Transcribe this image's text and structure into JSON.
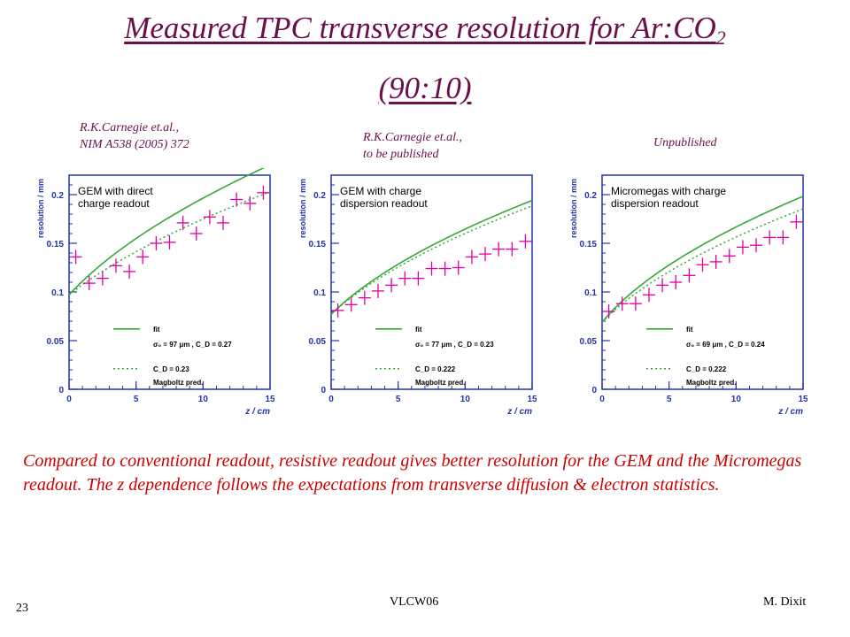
{
  "slide": {
    "title_main": "Measured TPC transverse resolution for Ar:CO",
    "title_sub": "2",
    "title_line2": "(90:10)",
    "conclusion": "Compared to conventional readout, resistive readout gives better resolution for the GEM and the Micromegas readout. The z dependence follows the expectations from transverse diffusion & electron statistics.",
    "page_number": "23",
    "footer_center": "VLCW06",
    "footer_right": "M. Dixit"
  },
  "citations": [
    {
      "line1": "R.K.Carnegie et.al.,",
      "line2": "NIM A538 (2005) 372"
    },
    {
      "line1": "R.K.Carnegie et.al.,",
      "line2": "to be published"
    },
    {
      "line1": "Unpublished",
      "line2": ""
    }
  ],
  "colors": {
    "title": "#6b0f4a",
    "conclusion": "#cc0000",
    "points": "#e000a0",
    "fit": "#33aa33",
    "axis": "#2233aa"
  },
  "chart_data": [
    {
      "type": "scatter",
      "xlabel": "z / cm",
      "ylabel": "resolution / mm",
      "xlim": [
        0,
        15
      ],
      "ylim": [
        0,
        0.22
      ],
      "xticks": [
        0,
        5,
        10,
        15
      ],
      "yticks": [
        0,
        0.05,
        0.1,
        0.15,
        0.2
      ],
      "panel_title": [
        "GEM with direct",
        "charge readout"
      ],
      "legend": {
        "fit": "fit",
        "fit_params": "σ₀ = 97 μm , C_D = 0.27",
        "pred": "C_D = 0.23",
        "pred_note": "Magboltz pred."
      },
      "points": {
        "x": [
          0.5,
          1.5,
          2.5,
          3.5,
          4.5,
          5.5,
          6.5,
          7.5,
          8.5,
          9.5,
          10.5,
          11.5,
          12.5,
          13.5,
          14.5
        ],
        "y": [
          0.136,
          0.109,
          0.114,
          0.127,
          0.121,
          0.136,
          0.15,
          0.151,
          0.171,
          0.16,
          0.177,
          0.171,
          0.195,
          0.191,
          0.202
        ]
      },
      "fit": {
        "sigma0": 0.097,
        "cd": 0.27
      },
      "pred": {
        "sigma0": 0.097,
        "cd": 0.23
      }
    },
    {
      "type": "scatter",
      "xlabel": "z / cm",
      "ylabel": "resolution / mm",
      "xlim": [
        0,
        15
      ],
      "ylim": [
        0,
        0.22
      ],
      "xticks": [
        0,
        5,
        10,
        15
      ],
      "yticks": [
        0,
        0.05,
        0.1,
        0.15,
        0.2
      ],
      "panel_title": [
        "GEM with charge",
        "dispersion readout"
      ],
      "legend": {
        "fit": "fit",
        "fit_params": "σ₀ = 77 μm , C_D = 0.23",
        "pred": "C_D = 0.222",
        "pred_note": "Magboltz pred."
      },
      "points": {
        "x": [
          0.5,
          1.5,
          2.5,
          3.5,
          4.5,
          5.5,
          6.5,
          7.5,
          8.5,
          9.5,
          10.5,
          11.5,
          12.5,
          13.5,
          14.5
        ],
        "y": [
          0.081,
          0.087,
          0.094,
          0.101,
          0.107,
          0.114,
          0.114,
          0.124,
          0.124,
          0.125,
          0.136,
          0.139,
          0.144,
          0.144,
          0.152
        ]
      },
      "fit": {
        "sigma0": 0.077,
        "cd": 0.23
      },
      "pred": {
        "sigma0": 0.077,
        "cd": 0.222
      }
    },
    {
      "type": "scatter",
      "xlabel": "z / cm",
      "ylabel": "resolution / mm",
      "xlim": [
        0,
        15
      ],
      "ylim": [
        0,
        0.22
      ],
      "xticks": [
        0,
        5,
        10,
        15
      ],
      "yticks": [
        0,
        0.05,
        0.1,
        0.15,
        0.2
      ],
      "panel_title": [
        "Micromegas with charge",
        "dispersion readout"
      ],
      "legend": {
        "fit": "fit",
        "fit_params": "σ₀ = 69 μm , C_D = 0.24",
        "pred": "C_D = 0.222",
        "pred_note": "Magboltz pred."
      },
      "points": {
        "x": [
          0.5,
          1.5,
          2.5,
          3.5,
          4.5,
          5.5,
          6.5,
          7.5,
          8.5,
          9.5,
          10.5,
          11.5,
          12.5,
          13.5,
          14.5
        ],
        "y": [
          0.08,
          0.088,
          0.088,
          0.097,
          0.107,
          0.11,
          0.117,
          0.128,
          0.131,
          0.137,
          0.146,
          0.148,
          0.156,
          0.156,
          0.172
        ]
      },
      "fit": {
        "sigma0": 0.069,
        "cd": 0.24
      },
      "pred": {
        "sigma0": 0.069,
        "cd": 0.222
      }
    }
  ]
}
